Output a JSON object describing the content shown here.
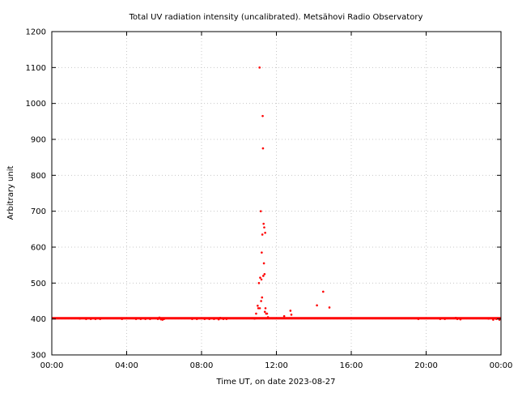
{
  "chart_data": {
    "type": "scatter",
    "title": "Total UV radiation intensity (uncalibrated). Metsähovi Radio Observatory",
    "xlabel": "Time UT, on date 2023-08-27",
    "ylabel": "Arbitrary unit",
    "xlim": [
      "00:00",
      "24:00"
    ],
    "ylim": [
      300,
      1200
    ],
    "x_ticks": [
      "00:00",
      "04:00",
      "08:00",
      "12:00",
      "16:00",
      "20:00",
      "00:00"
    ],
    "y_ticks": [
      300,
      400,
      500,
      600,
      700,
      800,
      900,
      1000,
      1100,
      1200
    ],
    "grid": true,
    "marker_color": "#ff0000",
    "baseline": {
      "x_start": "00:00",
      "x_end": "24:00",
      "y": 402
    },
    "series": [
      {
        "points": [
          [
            "01:30",
            401
          ],
          [
            "01:50",
            400
          ],
          [
            "02:05",
            400
          ],
          [
            "02:20",
            400
          ],
          [
            "02:35",
            400
          ],
          [
            "03:45",
            400
          ],
          [
            "04:30",
            400
          ],
          [
            "04:45",
            400
          ],
          [
            "05:00",
            400
          ],
          [
            "05:15",
            400
          ],
          [
            "05:40",
            400
          ],
          [
            "05:45",
            404
          ],
          [
            "05:50",
            399
          ],
          [
            "05:55",
            398
          ],
          [
            "06:00",
            400
          ],
          [
            "07:30",
            400
          ],
          [
            "07:45",
            400
          ],
          [
            "08:10",
            400
          ],
          [
            "08:25",
            400
          ],
          [
            "08:40",
            400
          ],
          [
            "08:55",
            399
          ],
          [
            "09:00",
            403
          ],
          [
            "09:10",
            400
          ],
          [
            "09:20",
            400
          ],
          [
            "10:50",
            401
          ],
          [
            "10:55",
            415
          ],
          [
            "11:00",
            437
          ],
          [
            "11:02",
            430
          ],
          [
            "11:04",
            500
          ],
          [
            "11:06",
            1100
          ],
          [
            "11:07",
            430
          ],
          [
            "11:08",
            515
          ],
          [
            "11:10",
            700
          ],
          [
            "11:11",
            450
          ],
          [
            "11:12",
            510
          ],
          [
            "11:13",
            585
          ],
          [
            "11:14",
            460
          ],
          [
            "11:15",
            635
          ],
          [
            "11:16",
            965
          ],
          [
            "11:17",
            875
          ],
          [
            "11:18",
            520
          ],
          [
            "11:19",
            665
          ],
          [
            "11:20",
            555
          ],
          [
            "11:21",
            655
          ],
          [
            "11:22",
            525
          ],
          [
            "11:23",
            420
          ],
          [
            "11:24",
            640
          ],
          [
            "11:25",
            430
          ],
          [
            "11:27",
            415
          ],
          [
            "11:30",
            415
          ],
          [
            "11:33",
            405
          ],
          [
            "12:25",
            408
          ],
          [
            "12:45",
            423
          ],
          [
            "12:48",
            412
          ],
          [
            "14:10",
            438
          ],
          [
            "14:30",
            476
          ],
          [
            "14:50",
            432
          ],
          [
            "19:35",
            400
          ],
          [
            "20:45",
            400
          ],
          [
            "21:00",
            400
          ],
          [
            "21:35",
            403
          ],
          [
            "21:40",
            400
          ],
          [
            "21:50",
            399
          ],
          [
            "23:20",
            401
          ],
          [
            "23:35",
            398
          ],
          [
            "23:45",
            400
          ],
          [
            "23:55",
            398
          ]
        ]
      }
    ]
  }
}
